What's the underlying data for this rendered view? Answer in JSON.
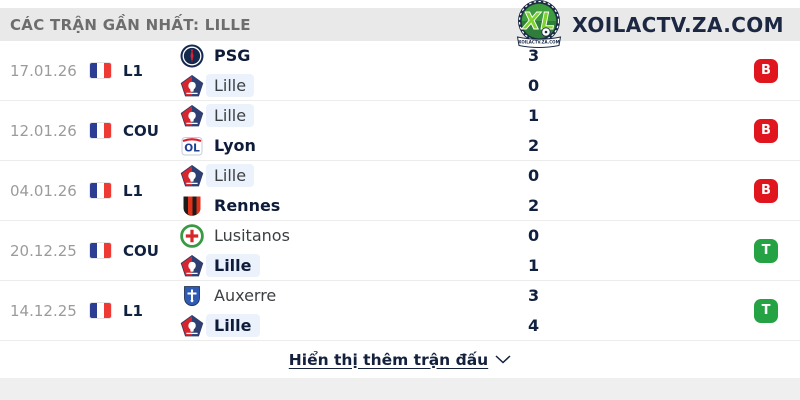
{
  "header": {
    "title": "CÁC TRẬN GẦN NHẤT: LILLE"
  },
  "brand": {
    "name": "XOILACTV.ZA.COM",
    "monogram": "XL",
    "ribbon_text": "XOILACTV.ZA.COM"
  },
  "matches": [
    {
      "date": "17.01.26",
      "competition": "L1",
      "flag": "france-flag",
      "teams": [
        {
          "name": "PSG",
          "crest": "psg-crest",
          "winner": true,
          "tracked": false,
          "score": "3"
        },
        {
          "name": "Lille",
          "crest": "lille-crest",
          "winner": false,
          "tracked": true,
          "score": "0"
        }
      ],
      "result": {
        "label": "B",
        "type": "loss"
      }
    },
    {
      "date": "12.01.26",
      "competition": "COU",
      "flag": "france-flag",
      "teams": [
        {
          "name": "Lille",
          "crest": "lille-crest",
          "winner": false,
          "tracked": true,
          "score": "1"
        },
        {
          "name": "Lyon",
          "crest": "lyon-crest",
          "winner": true,
          "tracked": false,
          "score": "2"
        }
      ],
      "result": {
        "label": "B",
        "type": "loss"
      }
    },
    {
      "date": "04.01.26",
      "competition": "L1",
      "flag": "france-flag",
      "teams": [
        {
          "name": "Lille",
          "crest": "lille-crest",
          "winner": false,
          "tracked": true,
          "score": "0"
        },
        {
          "name": "Rennes",
          "crest": "rennes-crest",
          "winner": true,
          "tracked": false,
          "score": "2"
        }
      ],
      "result": {
        "label": "B",
        "type": "loss"
      }
    },
    {
      "date": "20.12.25",
      "competition": "COU",
      "flag": "france-flag",
      "teams": [
        {
          "name": "Lusitanos",
          "crest": "lusitanos-crest",
          "winner": false,
          "tracked": false,
          "score": "0"
        },
        {
          "name": "Lille",
          "crest": "lille-crest",
          "winner": true,
          "tracked": true,
          "score": "1"
        }
      ],
      "result": {
        "label": "T",
        "type": "win"
      }
    },
    {
      "date": "14.12.25",
      "competition": "L1",
      "flag": "france-flag",
      "teams": [
        {
          "name": "Auxerre",
          "crest": "auxerre-crest",
          "winner": false,
          "tracked": false,
          "score": "3"
        },
        {
          "name": "Lille",
          "crest": "lille-crest",
          "winner": true,
          "tracked": true,
          "score": "4"
        }
      ],
      "result": {
        "label": "T",
        "type": "win"
      }
    }
  ],
  "footer": {
    "show_more_label": "Hiển thị thêm trận đấu",
    "chevron_icon": "chevron-down-icon"
  },
  "colors": {
    "header_bg": "#e9e9e9",
    "navy": "#14213d",
    "date_gray": "#9b9b9b",
    "win_green": "#25a244",
    "loss_red": "#e1151d",
    "tracked_pill_bg": "#ecf2fb",
    "brand_green": "#5fc22d",
    "flag_blue": "#2c3e94",
    "flag_red": "#ee3a34"
  }
}
